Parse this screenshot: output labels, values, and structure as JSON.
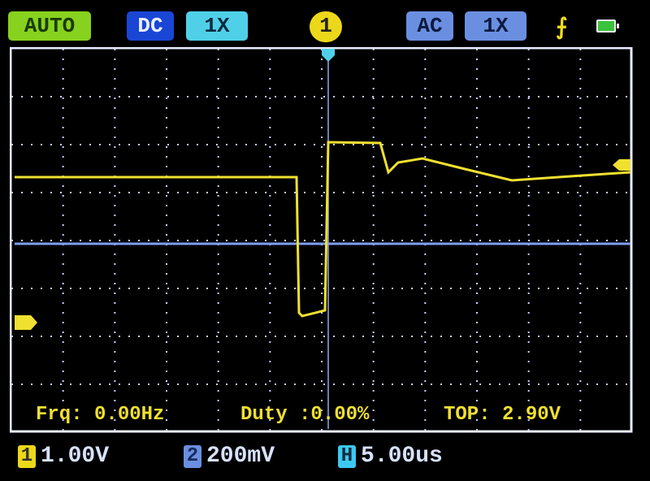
{
  "header": {
    "mode": "AUTO",
    "ch1_coupling": "DC",
    "ch1_probe": "1X",
    "trigger_channel": "1",
    "ch2_coupling": "AC",
    "ch2_probe": "1X",
    "trigger_edge_icon": "rising-edge-icon",
    "battery_icon": "battery-icon"
  },
  "measurements": {
    "frequency": "Frq: 0.00Hz",
    "duty": "Duty :0.00%",
    "top": "TOP: 2.90V"
  },
  "footer": {
    "ch1_label": "1",
    "ch1_scale": "1.00V",
    "ch2_label": "2",
    "ch2_scale": "200mV",
    "h_label": "H",
    "timebase": "5.00us"
  },
  "colors": {
    "ch1": "#f0e030",
    "ch2": "#6b8fe0",
    "grid": "#c8d0ff",
    "frame": "#e8ecff"
  }
}
